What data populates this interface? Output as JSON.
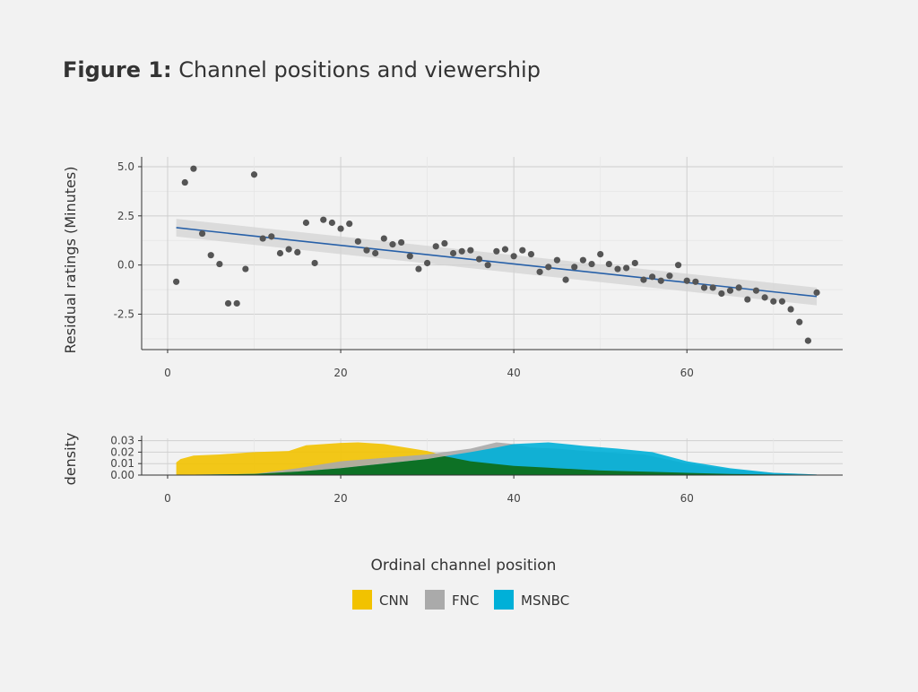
{
  "figure": {
    "label": "Figure 1:",
    "title": "Channel positions and viewership"
  },
  "chart_data": [
    {
      "type": "scatter",
      "panel": "top",
      "ylabel": "Residual ratings (Minutes)",
      "xlim": [
        -3,
        78
      ],
      "ylim": [
        -4.3,
        5.5
      ],
      "xticks": [
        0,
        20,
        40,
        60
      ],
      "xtick_labels": [
        "0",
        "20",
        "40",
        "60"
      ],
      "yticks": [
        5.0,
        2.5,
        0.0,
        -2.5
      ],
      "ytick_labels": [
        "5.0",
        "2.5",
        "0.0",
        "-2.5"
      ],
      "grid": true,
      "points": {
        "x": [
          1,
          2,
          3,
          4,
          5,
          6,
          7,
          8,
          9,
          10,
          11,
          12,
          13,
          14,
          15,
          16,
          17,
          18,
          19,
          20,
          21,
          22,
          23,
          24,
          25,
          26,
          27,
          28,
          29,
          30,
          31,
          32,
          33,
          34,
          35,
          36,
          37,
          38,
          39,
          40,
          41,
          42,
          43,
          44,
          45,
          46,
          47,
          48,
          49,
          50,
          51,
          52,
          53,
          54,
          55,
          56,
          57,
          58,
          59,
          60,
          61,
          62,
          63,
          64,
          65,
          66,
          67,
          68,
          69,
          70,
          71,
          72,
          73,
          74,
          75
        ],
        "y": [
          -0.85,
          4.2,
          4.9,
          1.6,
          0.5,
          0.05,
          -1.95,
          -1.95,
          -0.2,
          4.6,
          1.35,
          1.45,
          0.6,
          0.8,
          0.65,
          2.15,
          0.1,
          2.3,
          2.15,
          1.85,
          2.1,
          1.2,
          0.75,
          0.6,
          1.35,
          1.05,
          1.15,
          0.45,
          -0.2,
          0.1,
          0.95,
          1.1,
          0.6,
          0.7,
          0.75,
          0.3,
          0.0,
          0.7,
          0.8,
          0.45,
          0.75,
          0.55,
          -0.35,
          -0.1,
          0.25,
          -0.75,
          -0.1,
          0.25,
          0.05,
          0.55,
          0.05,
          -0.2,
          -0.15,
          0.1,
          -0.75,
          -0.6,
          -0.8,
          -0.55,
          0.0,
          -0.8,
          -0.85,
          -1.15,
          -1.15,
          -1.45,
          -1.3,
          -1.15,
          -1.75,
          -1.3,
          -1.65,
          -1.85,
          -1.85,
          -2.25,
          -2.9,
          -3.85,
          -1.4
        ]
      },
      "trend": {
        "x": [
          1,
          75
        ],
        "y": [
          1.9,
          -1.6
        ],
        "ci_halfwidth": [
          0.45,
          0.45
        ]
      },
      "colors": {
        "points": "#555555",
        "trend": "#2760a8",
        "band": "#d3d3d3"
      }
    },
    {
      "type": "area",
      "panel": "bottom",
      "ylabel": "density",
      "xlabel": "Ordinal channel position",
      "xlim": [
        -3,
        78
      ],
      "ylim": [
        0,
        0.032
      ],
      "xticks": [
        0,
        20,
        40,
        60
      ],
      "xtick_labels": [
        "0",
        "20",
        "40",
        "60"
      ],
      "yticks": [
        0.0,
        0.01,
        0.02,
        0.03
      ],
      "ytick_labels": [
        "0.00",
        "0.01",
        "0.02",
        "0.03"
      ],
      "series": [
        {
          "name": "CNN",
          "color": "#f2c200",
          "x": [
            1,
            1.5,
            3,
            6,
            10,
            14,
            16,
            20,
            22,
            25,
            30,
            32,
            35,
            40,
            45,
            50,
            55,
            60,
            65,
            70,
            75
          ],
          "y": [
            0.011,
            0.014,
            0.017,
            0.018,
            0.02,
            0.021,
            0.026,
            0.028,
            0.0285,
            0.027,
            0.021,
            0.017,
            0.012,
            0.008,
            0.006,
            0.004,
            0.003,
            0.002,
            0.001,
            0.0005,
            0.0003
          ]
        },
        {
          "name": "FNC",
          "color": "#aaaaaa",
          "x": [
            1,
            5,
            10,
            15,
            20,
            25,
            30,
            35,
            38,
            40,
            42,
            45,
            50,
            55,
            60,
            65,
            70,
            75
          ],
          "y": [
            0.0003,
            0.0005,
            0.001,
            0.006,
            0.012,
            0.015,
            0.018,
            0.023,
            0.0285,
            0.027,
            0.024,
            0.023,
            0.02,
            0.018,
            0.01,
            0.005,
            0.002,
            0.0005
          ]
        },
        {
          "name": "MSNBC",
          "color": "#00b0d8",
          "x": [
            1,
            5,
            10,
            15,
            20,
            25,
            30,
            35,
            38,
            40,
            44,
            48,
            52,
            56,
            60,
            65,
            70,
            75
          ],
          "y": [
            0.0003,
            0.0005,
            0.001,
            0.003,
            0.006,
            0.01,
            0.014,
            0.02,
            0.024,
            0.027,
            0.0285,
            0.0255,
            0.023,
            0.02,
            0.012,
            0.006,
            0.002,
            0.0005
          ]
        }
      ],
      "overlap_color": "#0d6a12",
      "legend": {
        "position": "bottom",
        "items": [
          {
            "label": "CNN",
            "color": "#f2c200"
          },
          {
            "label": "FNC",
            "color": "#aaaaaa"
          },
          {
            "label": "MSNBC",
            "color": "#00b0d8"
          }
        ]
      }
    }
  ]
}
